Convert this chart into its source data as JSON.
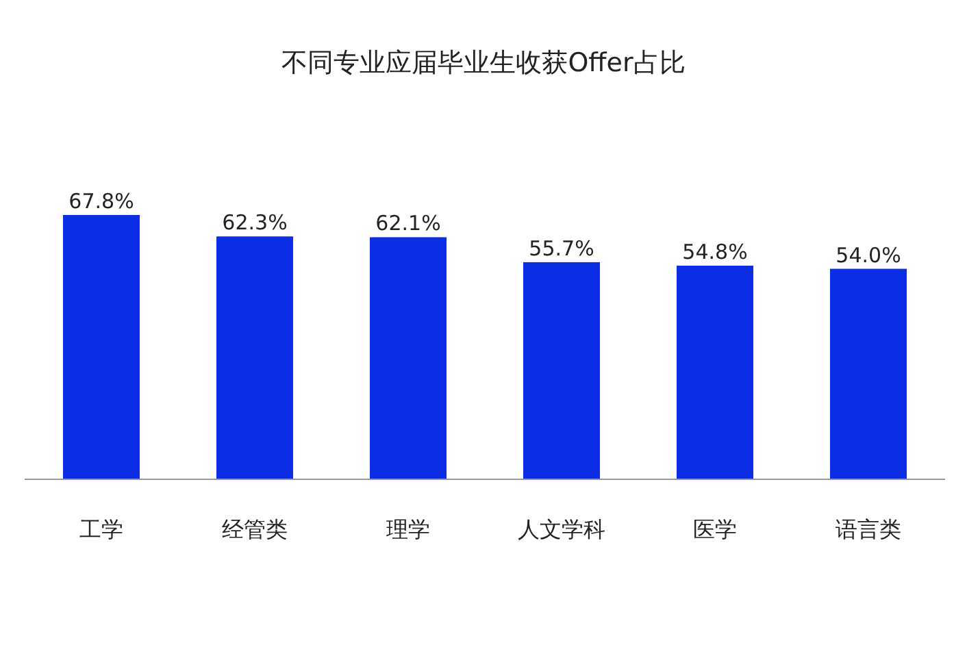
{
  "chart_data": {
    "type": "bar",
    "title": "不同专业应届毕业生收获Offer占比",
    "categories": [
      "工学",
      "经管类",
      "理学",
      "人文学科",
      "医学",
      "语言类"
    ],
    "values": [
      67.8,
      62.3,
      62.1,
      55.7,
      54.8,
      54.0
    ],
    "value_labels": [
      "67.8%",
      "62.3%",
      "62.1%",
      "55.7%",
      "54.8%",
      "54.0%"
    ],
    "color": "#0b2de6"
  }
}
